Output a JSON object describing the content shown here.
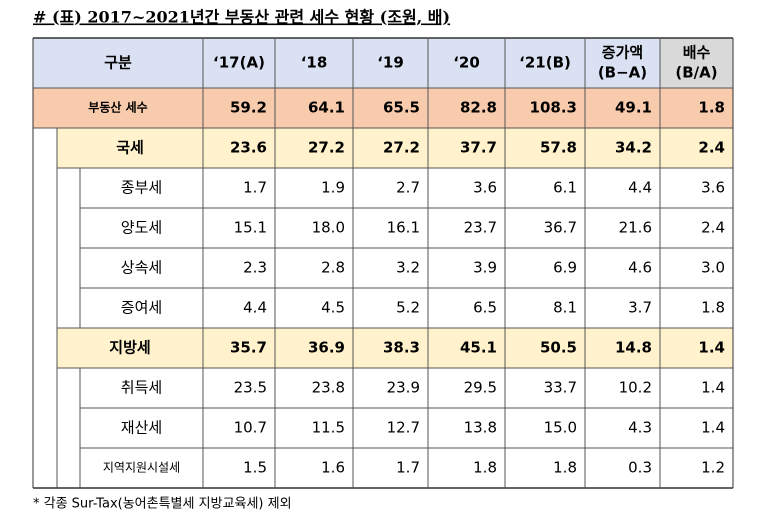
{
  "title": "# (표) 2017~2021년간 부동산 관련 세수 현황 (조원, 배)",
  "table": {
    "header": [
      "구분",
      "‘17(A)",
      "‘18",
      "‘19",
      "‘20",
      "‘21(B)",
      [
        "증가액",
        "(B−A)"
      ],
      [
        "배수",
        "(B/A)"
      ]
    ],
    "rows": [
      {
        "label": "부동산 세수",
        "level": 0,
        "cells": [
          "59.2",
          "64.1",
          "65.5",
          "82.8",
          "108.3",
          "49.1",
          "1.8"
        ]
      },
      {
        "label": "국세",
        "level": 1,
        "cells": [
          "23.6",
          "27.2",
          "27.2",
          "37.7",
          "57.8",
          "34.2",
          "2.4"
        ]
      },
      {
        "label": "종부세",
        "level": 2,
        "cells": [
          "1.7",
          "1.9",
          "2.7",
          "3.6",
          "6.1",
          "4.4",
          "3.6"
        ]
      },
      {
        "label": "양도세",
        "level": 2,
        "cells": [
          "15.1",
          "18.0",
          "16.1",
          "23.7",
          "36.7",
          "21.6",
          "2.4"
        ]
      },
      {
        "label": "상속세",
        "level": 2,
        "cells": [
          "2.3",
          "2.8",
          "3.2",
          "3.9",
          "6.9",
          "4.6",
          "3.0"
        ]
      },
      {
        "label": "증여세",
        "level": 2,
        "cells": [
          "4.4",
          "4.5",
          "5.2",
          "6.5",
          "8.1",
          "3.7",
          "1.8"
        ]
      },
      {
        "label": "지방세",
        "level": 1,
        "cells": [
          "35.7",
          "36.9",
          "38.3",
          "45.1",
          "50.5",
          "14.8",
          "1.4"
        ]
      },
      {
        "label": "취득세",
        "level": 2,
        "cells": [
          "23.5",
          "23.8",
          "23.9",
          "29.5",
          "33.7",
          "10.2",
          "1.4"
        ]
      },
      {
        "label": "재산세",
        "level": 2,
        "cells": [
          "10.7",
          "11.5",
          "12.7",
          "13.8",
          "15.0",
          "4.3",
          "1.4"
        ]
      },
      {
        "label": "지역지원시설세",
        "level": 2,
        "cells": [
          "1.5",
          "1.6",
          "1.7",
          "1.8",
          "1.8",
          "0.3",
          "1.2"
        ]
      }
    ]
  },
  "footnote": "* 각종 Sur-Tax(농어촌특별세 지방교육세) 제외"
}
